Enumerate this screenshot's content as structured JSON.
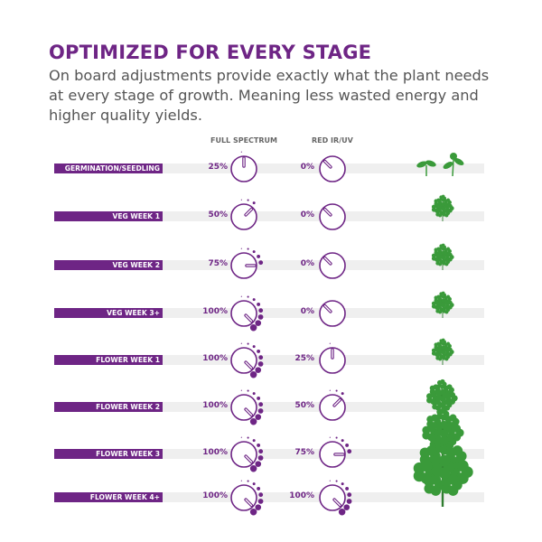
{
  "title": "OPTIMIZED FOR EVERY STAGE",
  "subtitle": "On board adjustments provide exactly what the plant needs at every stage of growth. Meaning less wasted energy and higher quality yields.",
  "columns": {
    "full_spectrum": "FULL SPECTRUM",
    "red_ir_uv": "RED IR/UV"
  },
  "accent": "#6e2585",
  "plant_color": "#3a9a3a",
  "stages": [
    {
      "label": "GERMINATION/SEEDLING",
      "full": "25%",
      "full_value": 25,
      "red": "0%",
      "red_value": 0,
      "plant": "seedling"
    },
    {
      "label": "VEG WEEK 1",
      "full": "50%",
      "full_value": 50,
      "red": "0%",
      "red_value": 0,
      "plant": "small"
    },
    {
      "label": "VEG WEEK 2",
      "full": "75%",
      "full_value": 75,
      "red": "0%",
      "red_value": 0,
      "plant": "small"
    },
    {
      "label": "VEG WEEK 3+",
      "full": "100%",
      "full_value": 100,
      "red": "0%",
      "red_value": 0,
      "plant": "small"
    },
    {
      "label": "FLOWER WEEK 1",
      "full": "100%",
      "full_value": 100,
      "red": "25%",
      "red_value": 25,
      "plant": "small"
    },
    {
      "label": "FLOWER WEEK 2",
      "full": "100%",
      "full_value": 100,
      "red": "50%",
      "red_value": 50,
      "plant": "medium"
    },
    {
      "label": "FLOWER WEEK 3",
      "full": "100%",
      "full_value": 100,
      "red": "75%",
      "red_value": 75,
      "plant": "large"
    },
    {
      "label": "FLOWER WEEK 4+",
      "full": "100%",
      "full_value": 100,
      "red": "100%",
      "red_value": 100,
      "plant": "xlarge"
    }
  ]
}
